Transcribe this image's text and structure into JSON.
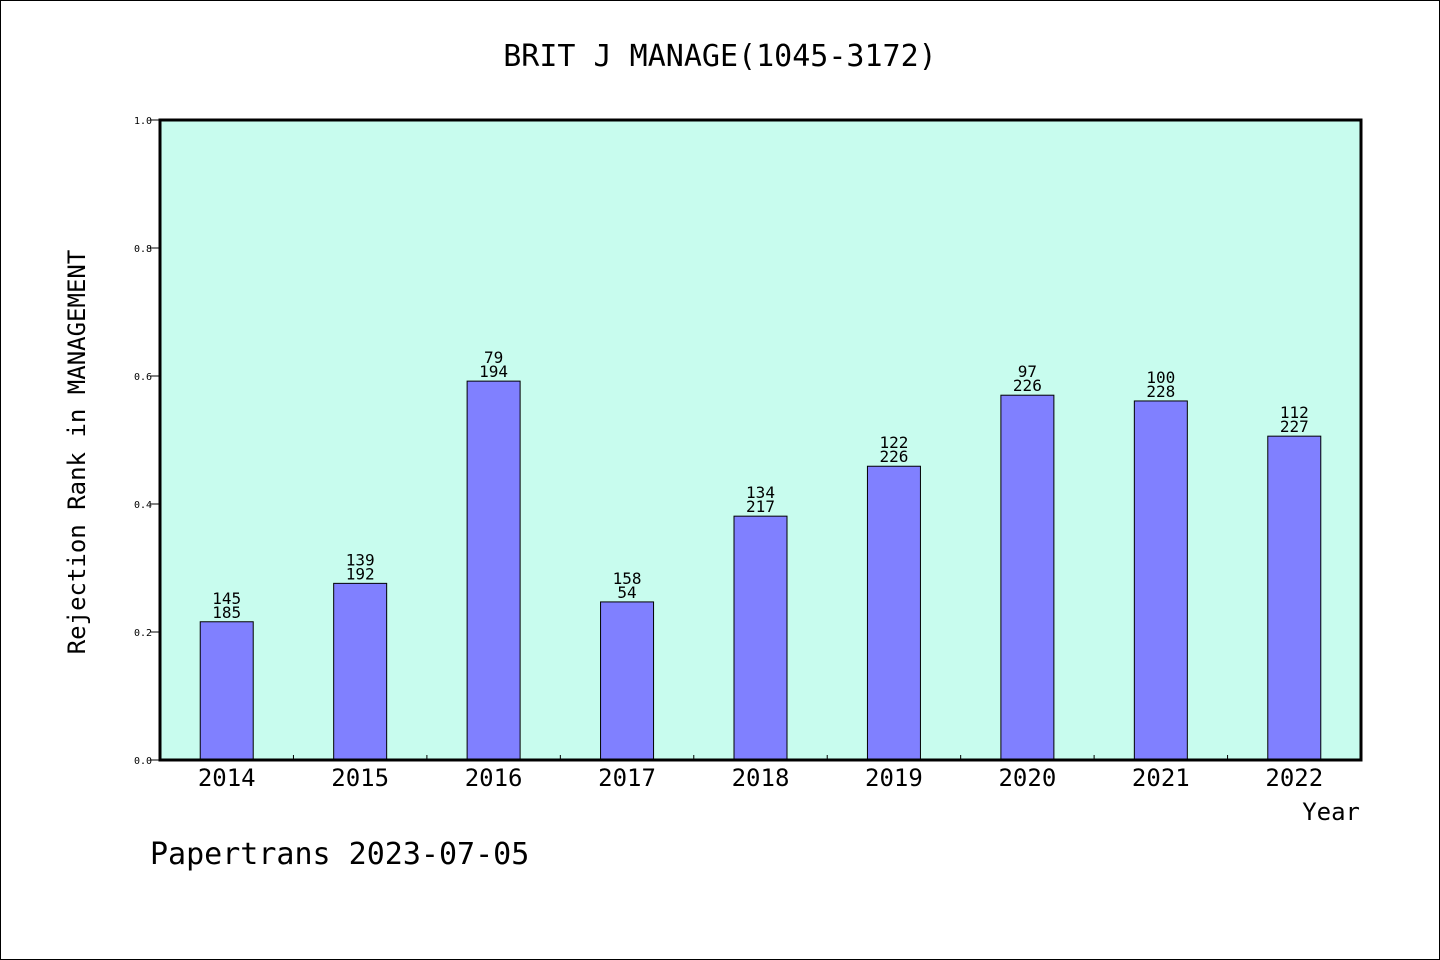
{
  "chart_data": {
    "type": "bar",
    "title": "BRIT J MANAGE(1045-3172)",
    "xlabel": "Year",
    "ylabel": "Rejection Rank in MANAGEMENT",
    "ylim": [
      0.0,
      1.0
    ],
    "yticks": [
      "0.0",
      "0.2",
      "0.4",
      "0.6",
      "0.8",
      "1.0"
    ],
    "categories": [
      "2014",
      "2015",
      "2016",
      "2017",
      "2018",
      "2019",
      "2020",
      "2021",
      "2022"
    ],
    "values": [
      0.216,
      0.276,
      0.592,
      0.247,
      0.381,
      0.459,
      0.57,
      0.561,
      0.506
    ],
    "labels_top": [
      "145",
      "139",
      "79",
      "158",
      "134",
      "122",
      "97",
      "100",
      "112"
    ],
    "labels_bottom": [
      "185",
      "192",
      "194",
      "54",
      "217",
      "226",
      "226",
      "228",
      "227"
    ],
    "grid": false,
    "colors": {
      "plot_background": "#c8fcee",
      "bar_fill": "#8080ff",
      "bar_stroke": "#000000"
    }
  },
  "footer": "Papertrans 2023-07-05"
}
